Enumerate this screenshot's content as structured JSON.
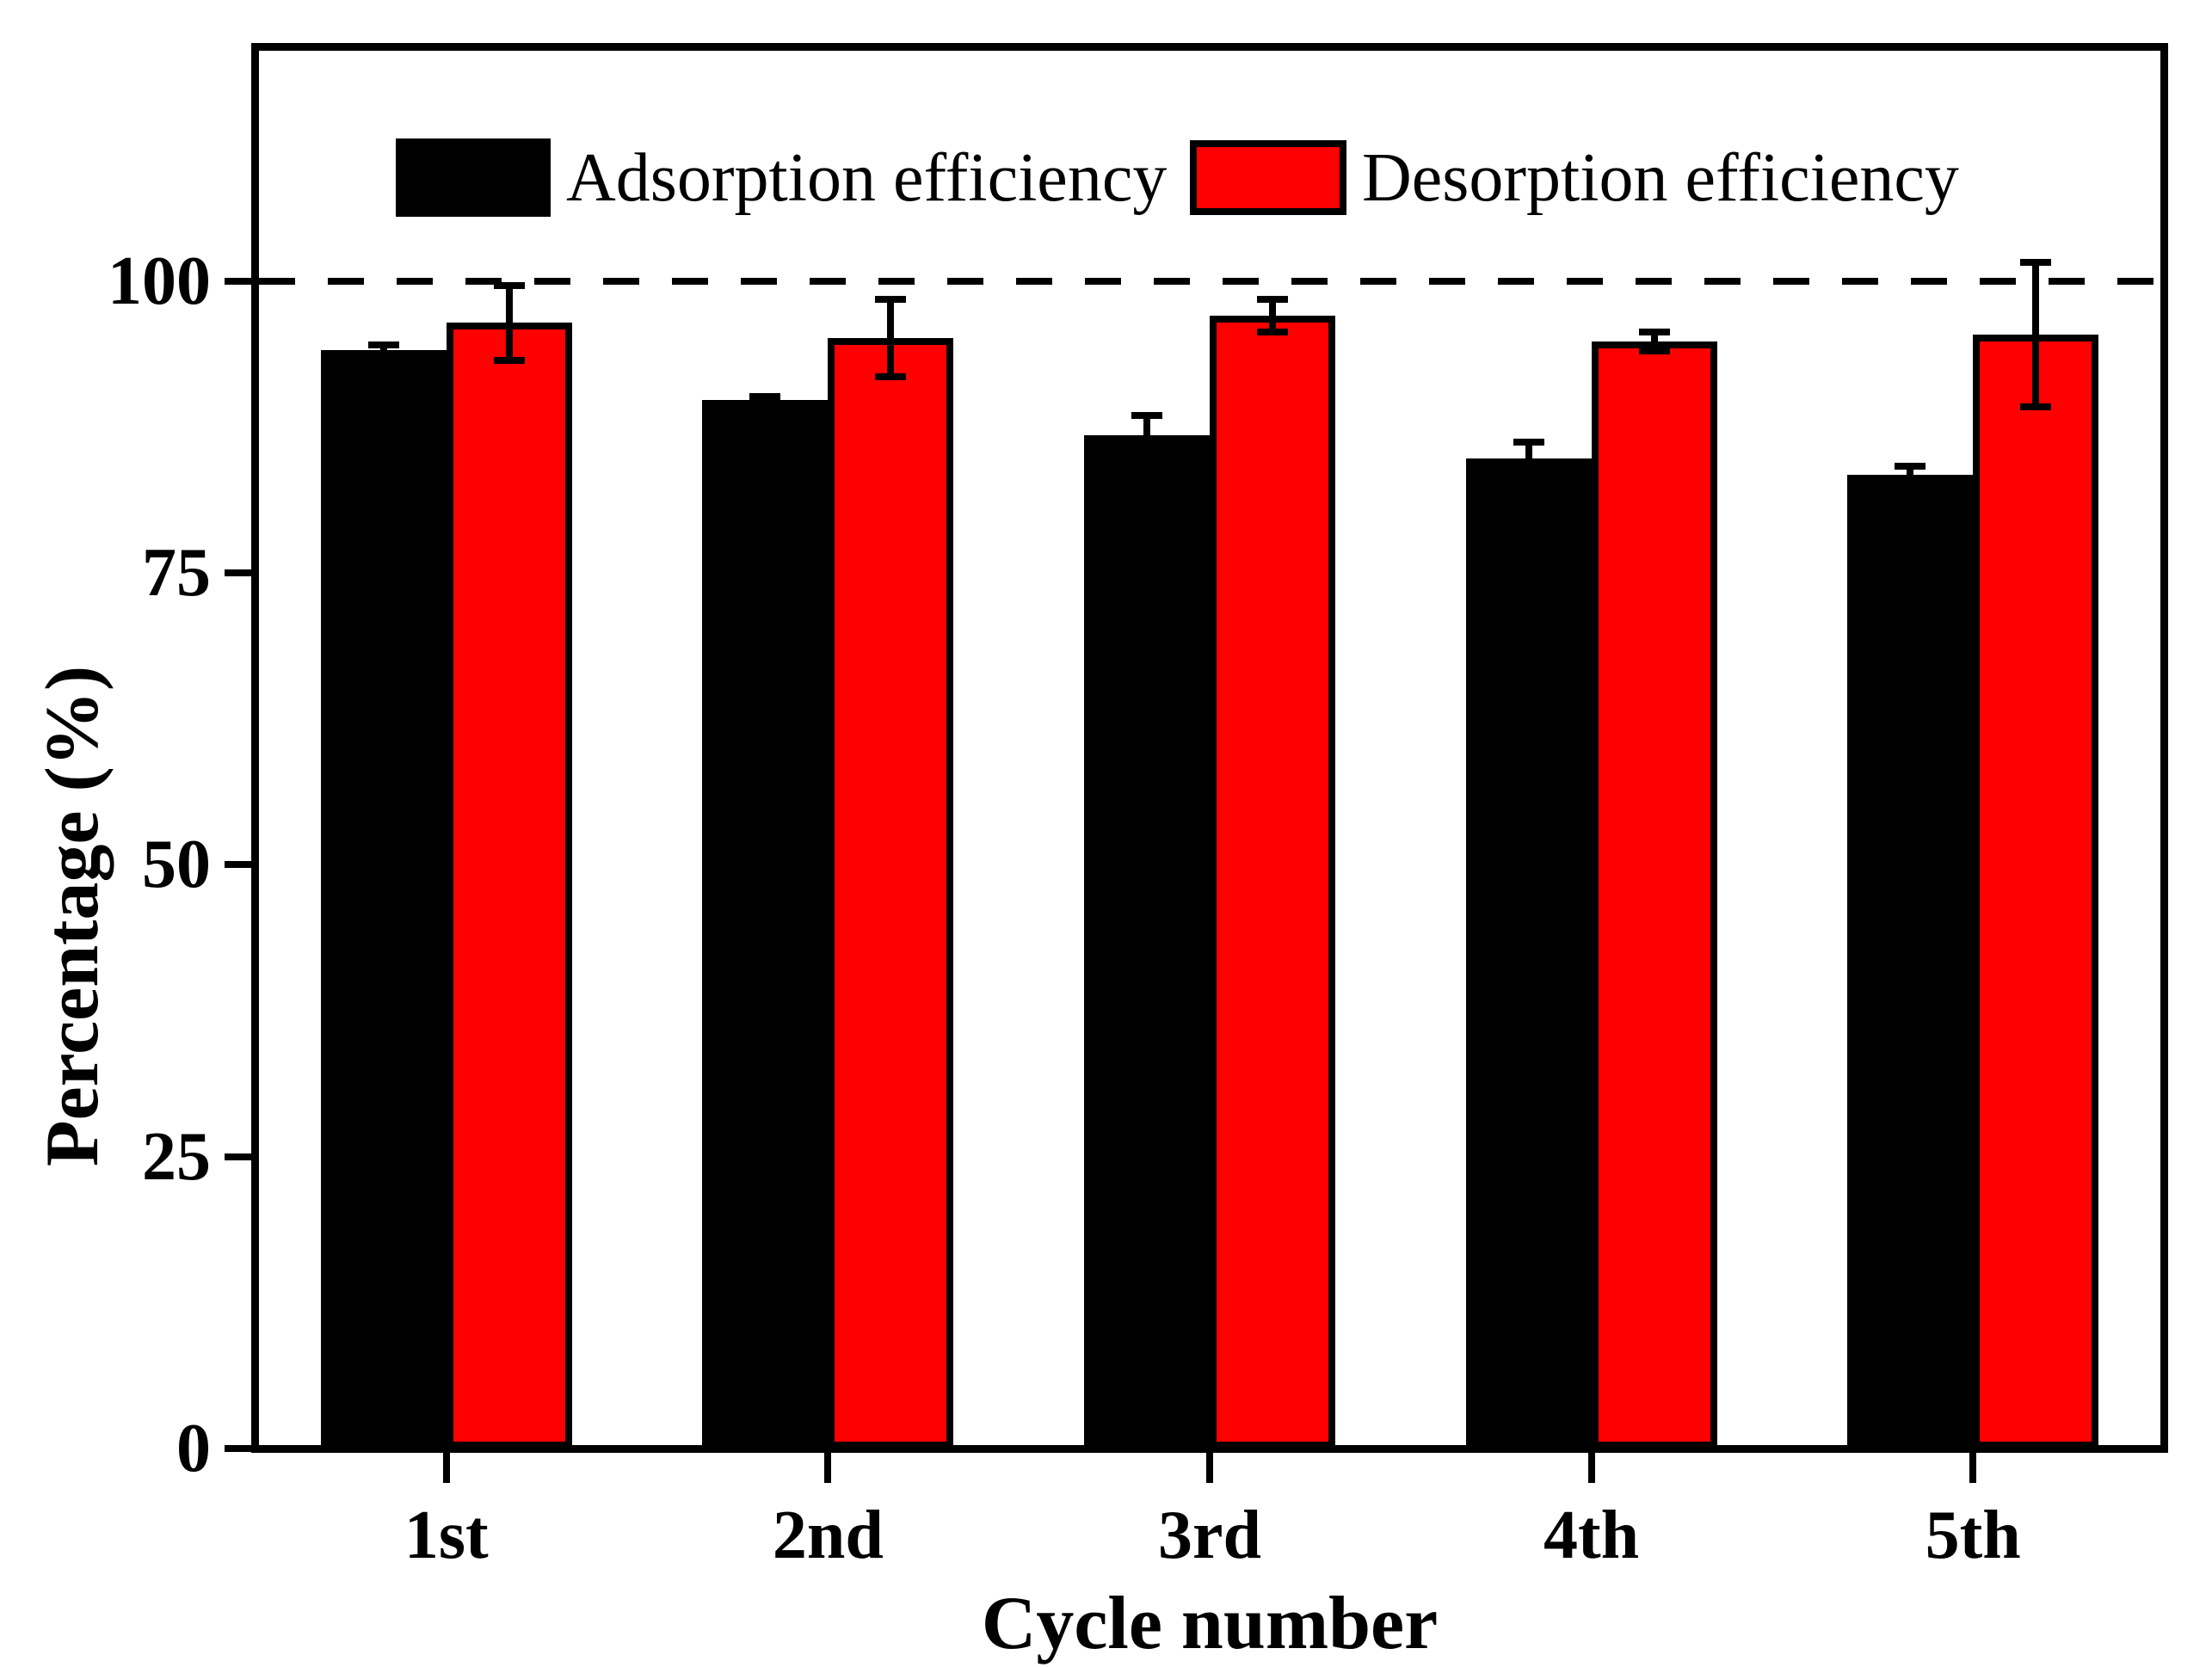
{
  "chart_data": {
    "type": "bar",
    "title": "",
    "categories": [
      "1st",
      "2nd",
      "3rd",
      "4th",
      "5th"
    ],
    "series": [
      {
        "name": "Adsorption efficiency",
        "color": "#000000",
        "values": [
          94.1,
          89.8,
          86.8,
          84.8,
          83.4
        ],
        "errors": [
          0.4,
          0.3,
          1.7,
          1.4,
          0.7
        ]
      },
      {
        "name": "Desorption efficiency",
        "color": "#ff0000",
        "values": [
          96.4,
          95.1,
          97.0,
          94.8,
          95.4
        ],
        "errors": [
          3.2,
          3.3,
          1.4,
          0.8,
          6.2
        ]
      }
    ],
    "xlabel": "Cycle number",
    "ylabel": "Percentage (%)",
    "ylim": [
      0,
      120
    ],
    "yticks": [
      0,
      25,
      50,
      75,
      100
    ],
    "reference_line": {
      "value": 100,
      "style": "dashed",
      "color": "#000000"
    },
    "grid": false,
    "legend_position": "top-inside",
    "bar_border_color": "#000000",
    "error_bar_color": "#000000"
  }
}
